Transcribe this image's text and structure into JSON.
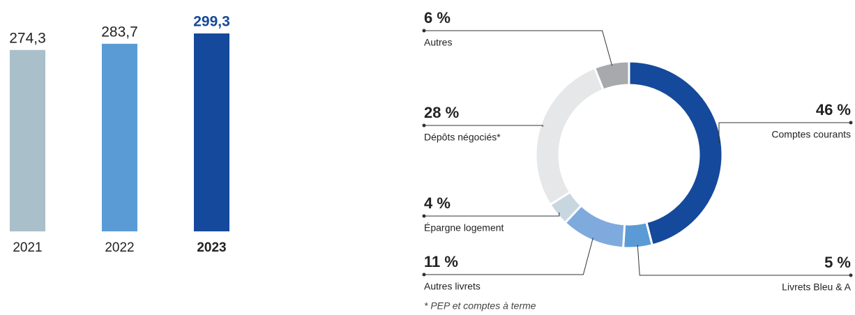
{
  "chart_data": [
    {
      "type": "bar",
      "categories": [
        "2021",
        "2022",
        "2023"
      ],
      "values": [
        274.3,
        283.7,
        299.3
      ],
      "value_labels": [
        "274,3",
        "283,7",
        "299,3"
      ],
      "colors": [
        "#a9bfc9",
        "#5b9bd5",
        "#15499c"
      ]
    },
    {
      "type": "pie",
      "categories": [
        "Comptes courants",
        "Livrets Bleu & A",
        "Autres livrets",
        "Épargne logement",
        "Dépôts négociés*",
        "Autres"
      ],
      "values": [
        46,
        5,
        11,
        4,
        28,
        6
      ],
      "value_labels": [
        "46 %",
        "5 %",
        "11 %",
        "4 %",
        "28 %",
        "6 %"
      ],
      "colors": [
        "#15499c",
        "#5b9bd5",
        "#7faadd",
        "#c8d7df",
        "#e5e7e9",
        "#a7a9ac"
      ],
      "footnote": "* PEP et comptes à terme"
    }
  ]
}
